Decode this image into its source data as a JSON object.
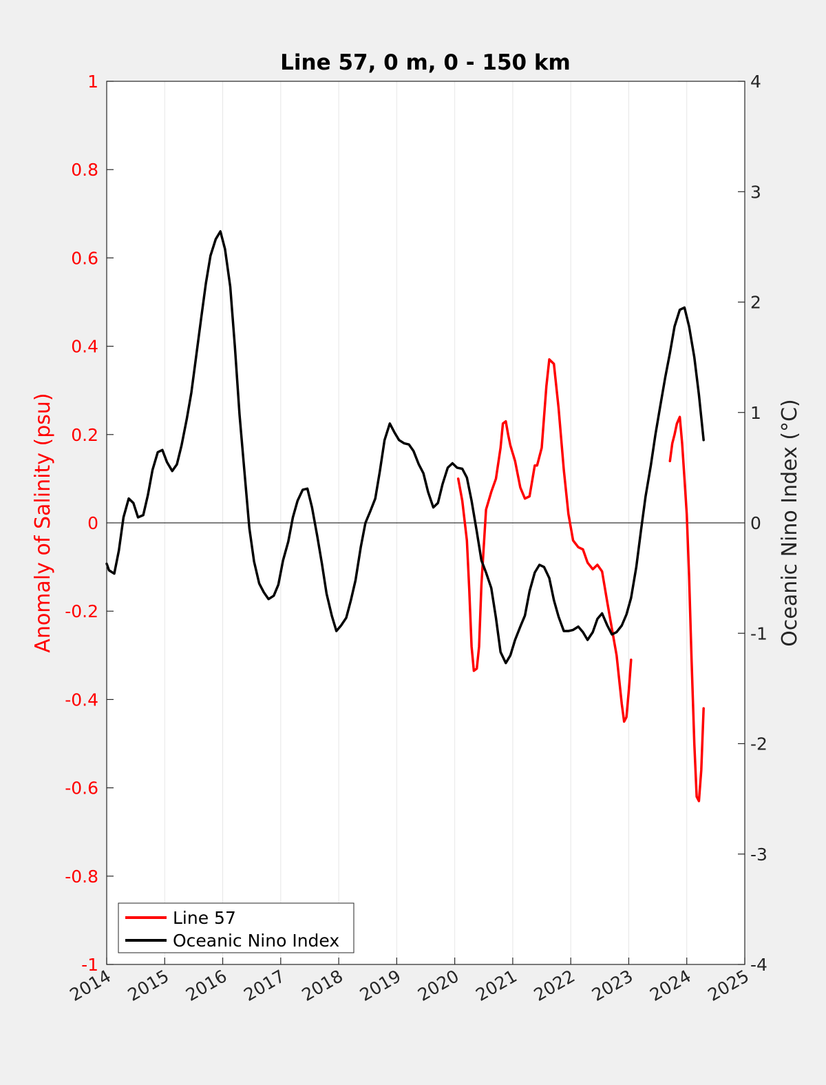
{
  "chart_data": {
    "type": "line",
    "title": "Line 57, 0 m, 0 - 150 km",
    "xlim": [
      2014,
      2025
    ],
    "x_ticks": [
      "2014",
      "2015",
      "2016",
      "2017",
      "2018",
      "2019",
      "2020",
      "2021",
      "2022",
      "2023",
      "2024",
      "2025"
    ],
    "ylabel_left": "Anomaly of Salinity (psu)",
    "ylim_left": [
      -1,
      1
    ],
    "yticks_left": [
      "1",
      "0.8",
      "0.6",
      "0.4",
      "0.2",
      "0",
      "-0.2",
      "-0.4",
      "-0.6",
      "-0.8",
      "-1"
    ],
    "ylabel_right": "Oceanic Nino Index (°C)",
    "ylim_right": [
      -4,
      4
    ],
    "yticks_right": [
      "4",
      "3",
      "2",
      "1",
      "0",
      "-1",
      "-2",
      "-3",
      "-4"
    ],
    "grid": "vertical",
    "legend_position": "bottom-left",
    "series": [
      {
        "name": "Line 57",
        "axis": "left",
        "color": "#ff0000",
        "segments": [
          [
            [
              2020.06,
              0.1
            ],
            [
              2020.13,
              0.05
            ],
            [
              2020.21,
              -0.04
            ],
            [
              2020.25,
              -0.15
            ],
            [
              2020.29,
              -0.28
            ],
            [
              2020.33,
              -0.335
            ],
            [
              2020.38,
              -0.33
            ],
            [
              2020.42,
              -0.28
            ],
            [
              2020.46,
              -0.14
            ],
            [
              2020.54,
              0.03
            ],
            [
              2020.63,
              0.07
            ],
            [
              2020.71,
              0.1
            ],
            [
              2020.79,
              0.17
            ],
            [
              2020.83,
              0.225
            ],
            [
              2020.88,
              0.23
            ],
            [
              2020.92,
              0.2
            ],
            [
              2020.96,
              0.175
            ],
            [
              2021.04,
              0.14
            ],
            [
              2021.13,
              0.08
            ],
            [
              2021.21,
              0.055
            ],
            [
              2021.29,
              0.06
            ],
            [
              2021.38,
              0.13
            ],
            [
              2021.42,
              0.13
            ],
            [
              2021.5,
              0.17
            ],
            [
              2021.58,
              0.31
            ],
            [
              2021.63,
              0.37
            ],
            [
              2021.71,
              0.36
            ],
            [
              2021.79,
              0.26
            ],
            [
              2021.88,
              0.12
            ],
            [
              2021.96,
              0.02
            ],
            [
              2022.04,
              -0.04
            ],
            [
              2022.13,
              -0.055
            ],
            [
              2022.21,
              -0.06
            ],
            [
              2022.29,
              -0.09
            ],
            [
              2022.38,
              -0.105
            ],
            [
              2022.46,
              -0.095
            ],
            [
              2022.54,
              -0.11
            ],
            [
              2022.63,
              -0.18
            ],
            [
              2022.71,
              -0.24
            ],
            [
              2022.79,
              -0.3
            ],
            [
              2022.88,
              -0.41
            ],
            [
              2022.92,
              -0.45
            ],
            [
              2022.96,
              -0.44
            ],
            [
              2023.0,
              -0.38
            ],
            [
              2023.04,
              -0.31
            ]
          ],
          [
            [
              2023.71,
              0.14
            ],
            [
              2023.75,
              0.18
            ],
            [
              2023.79,
              0.2
            ],
            [
              2023.83,
              0.225
            ],
            [
              2023.88,
              0.24
            ],
            [
              2023.92,
              0.18
            ],
            [
              2023.96,
              0.1
            ],
            [
              2024.0,
              0.02
            ],
            [
              2024.04,
              -0.12
            ],
            [
              2024.08,
              -0.3
            ],
            [
              2024.13,
              -0.5
            ],
            [
              2024.17,
              -0.62
            ],
            [
              2024.21,
              -0.63
            ],
            [
              2024.25,
              -0.56
            ],
            [
              2024.29,
              -0.42
            ]
          ]
        ]
      },
      {
        "name": "Oceanic Nino Index",
        "axis": "right",
        "color": "#000000",
        "segments": [
          [
            [
              2014.0,
              -0.37
            ],
            [
              2014.04,
              -0.43
            ],
            [
              2014.13,
              -0.46
            ],
            [
              2014.21,
              -0.25
            ],
            [
              2014.29,
              0.05
            ],
            [
              2014.38,
              0.22
            ],
            [
              2014.46,
              0.18
            ],
            [
              2014.54,
              0.05
            ],
            [
              2014.63,
              0.07
            ],
            [
              2014.71,
              0.25
            ],
            [
              2014.79,
              0.48
            ],
            [
              2014.88,
              0.64
            ],
            [
              2014.96,
              0.66
            ],
            [
              2015.04,
              0.55
            ],
            [
              2015.13,
              0.47
            ],
            [
              2015.21,
              0.53
            ],
            [
              2015.29,
              0.7
            ],
            [
              2015.38,
              0.94
            ],
            [
              2015.46,
              1.18
            ],
            [
              2015.54,
              1.5
            ],
            [
              2015.63,
              1.86
            ],
            [
              2015.71,
              2.17
            ],
            [
              2015.79,
              2.42
            ],
            [
              2015.88,
              2.57
            ],
            [
              2015.96,
              2.64
            ],
            [
              2016.04,
              2.48
            ],
            [
              2016.13,
              2.14
            ],
            [
              2016.21,
              1.6
            ],
            [
              2016.29,
              0.98
            ],
            [
              2016.38,
              0.43
            ],
            [
              2016.46,
              -0.05
            ],
            [
              2016.54,
              -0.35
            ],
            [
              2016.63,
              -0.55
            ],
            [
              2016.71,
              -0.63
            ],
            [
              2016.79,
              -0.69
            ],
            [
              2016.88,
              -0.66
            ],
            [
              2016.96,
              -0.56
            ],
            [
              2017.04,
              -0.34
            ],
            [
              2017.13,
              -0.17
            ],
            [
              2017.21,
              0.05
            ],
            [
              2017.29,
              0.2
            ],
            [
              2017.38,
              0.3
            ],
            [
              2017.46,
              0.31
            ],
            [
              2017.54,
              0.14
            ],
            [
              2017.63,
              -0.12
            ],
            [
              2017.71,
              -0.37
            ],
            [
              2017.79,
              -0.64
            ],
            [
              2017.88,
              -0.84
            ],
            [
              2017.96,
              -0.98
            ],
            [
              2018.04,
              -0.93
            ],
            [
              2018.13,
              -0.86
            ],
            [
              2018.21,
              -0.7
            ],
            [
              2018.29,
              -0.52
            ],
            [
              2018.38,
              -0.22
            ],
            [
              2018.46,
              0.0
            ],
            [
              2018.54,
              0.1
            ],
            [
              2018.63,
              0.22
            ],
            [
              2018.71,
              0.47
            ],
            [
              2018.79,
              0.75
            ],
            [
              2018.88,
              0.9
            ],
            [
              2018.96,
              0.82
            ],
            [
              2019.04,
              0.75
            ],
            [
              2019.13,
              0.72
            ],
            [
              2019.21,
              0.71
            ],
            [
              2019.29,
              0.65
            ],
            [
              2019.38,
              0.53
            ],
            [
              2019.46,
              0.45
            ],
            [
              2019.54,
              0.28
            ],
            [
              2019.63,
              0.14
            ],
            [
              2019.71,
              0.18
            ],
            [
              2019.79,
              0.35
            ],
            [
              2019.88,
              0.5
            ],
            [
              2019.96,
              0.54
            ],
            [
              2020.04,
              0.5
            ],
            [
              2020.13,
              0.49
            ],
            [
              2020.21,
              0.41
            ],
            [
              2020.29,
              0.2
            ],
            [
              2020.38,
              -0.08
            ],
            [
              2020.46,
              -0.34
            ],
            [
              2020.54,
              -0.45
            ],
            [
              2020.63,
              -0.59
            ],
            [
              2020.71,
              -0.86
            ],
            [
              2020.79,
              -1.17
            ],
            [
              2020.88,
              -1.27
            ],
            [
              2020.96,
              -1.2
            ],
            [
              2021.04,
              -1.06
            ],
            [
              2021.13,
              -0.94
            ],
            [
              2021.21,
              -0.84
            ],
            [
              2021.29,
              -0.62
            ],
            [
              2021.38,
              -0.45
            ],
            [
              2021.46,
              -0.38
            ],
            [
              2021.54,
              -0.4
            ],
            [
              2021.63,
              -0.5
            ],
            [
              2021.71,
              -0.7
            ],
            [
              2021.79,
              -0.85
            ],
            [
              2021.88,
              -0.98
            ],
            [
              2021.96,
              -0.98
            ],
            [
              2022.04,
              -0.97
            ],
            [
              2022.13,
              -0.94
            ],
            [
              2022.21,
              -0.99
            ],
            [
              2022.29,
              -1.06
            ],
            [
              2022.38,
              -0.99
            ],
            [
              2022.46,
              -0.87
            ],
            [
              2022.54,
              -0.82
            ],
            [
              2022.63,
              -0.93
            ],
            [
              2022.71,
              -1.01
            ],
            [
              2022.79,
              -0.99
            ],
            [
              2022.88,
              -0.93
            ],
            [
              2022.96,
              -0.83
            ],
            [
              2023.04,
              -0.68
            ],
            [
              2023.13,
              -0.4
            ],
            [
              2023.21,
              -0.07
            ],
            [
              2023.29,
              0.24
            ],
            [
              2023.38,
              0.52
            ],
            [
              2023.46,
              0.8
            ],
            [
              2023.54,
              1.05
            ],
            [
              2023.63,
              1.32
            ],
            [
              2023.71,
              1.54
            ],
            [
              2023.79,
              1.78
            ],
            [
              2023.88,
              1.93
            ],
            [
              2023.96,
              1.95
            ],
            [
              2024.04,
              1.78
            ],
            [
              2024.13,
              1.5
            ],
            [
              2024.21,
              1.16
            ],
            [
              2024.29,
              0.75
            ]
          ]
        ]
      }
    ]
  }
}
